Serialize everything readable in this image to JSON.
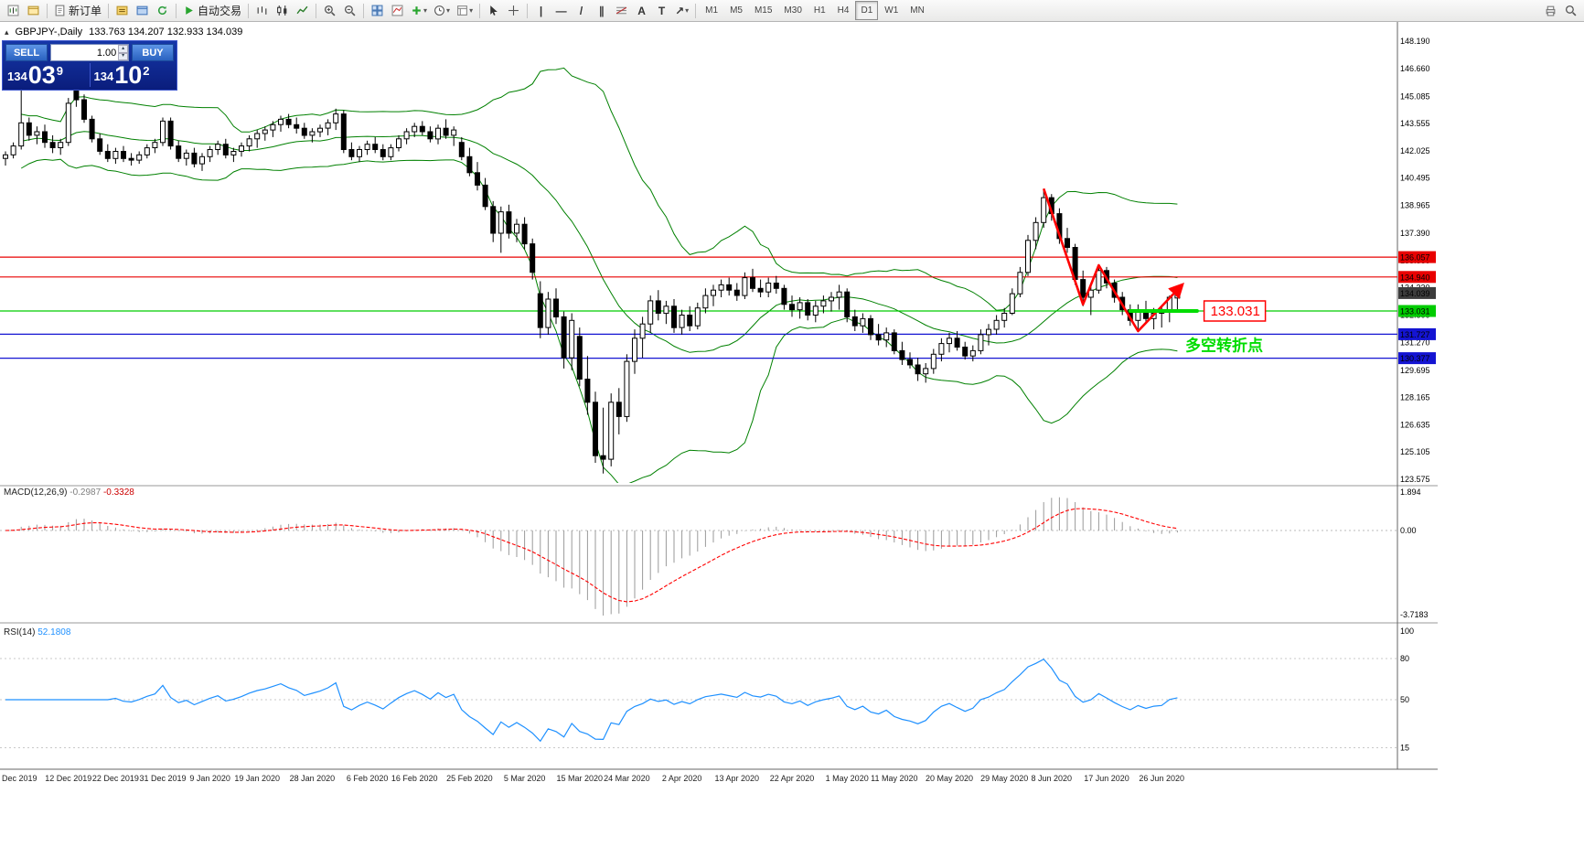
{
  "toolbar": {
    "items": [
      {
        "name": "new-chart",
        "icon": "new-chart"
      },
      {
        "name": "chart-profiles",
        "icon": "profiles"
      },
      {
        "sep": true
      },
      {
        "name": "new-order",
        "icon": "doc",
        "label": "新订单"
      },
      {
        "sep": true
      },
      {
        "name": "market-watch",
        "icon": "quotes"
      },
      {
        "name": "data-window",
        "icon": "data-window"
      },
      {
        "name": "navigator",
        "icon": "refresh"
      },
      {
        "sep": true
      },
      {
        "name": "auto-trading",
        "icon": "play",
        "label": "自动交易"
      },
      {
        "sep": true
      },
      {
        "name": "bar-chart-mode",
        "icon": "bars"
      },
      {
        "name": "candle-chart-mode",
        "icon": "candles"
      },
      {
        "name": "line-chart-mode",
        "icon": "line-chart"
      },
      {
        "sep": true
      },
      {
        "name": "zoom-in",
        "icon": "zoom-in"
      },
      {
        "name": "zoom-out",
        "icon": "zoom-out"
      },
      {
        "sep": true
      },
      {
        "name": "tile-windows",
        "icon": "tile"
      },
      {
        "name": "indicator-list",
        "icon": "ind-list"
      },
      {
        "name": "add-indicator",
        "icon": "plus",
        "dropdown": true
      },
      {
        "name": "period-presets",
        "icon": "clock",
        "dropdown": true
      },
      {
        "name": "templates",
        "icon": "template",
        "dropdown": true
      },
      {
        "sep": true
      },
      {
        "name": "cursor-tool",
        "icon": "cursor"
      },
      {
        "name": "crosshair-tool",
        "icon": "crosshair"
      },
      {
        "sep": true
      },
      {
        "name": "vertical-line-tool",
        "glyph": "|"
      },
      {
        "name": "horizontal-line-tool",
        "glyph": "—"
      },
      {
        "name": "trendline-tool",
        "glyph": "/"
      },
      {
        "name": "channel-tool",
        "glyph": "∥"
      },
      {
        "name": "fibonacci-tool",
        "icon": "fibo"
      },
      {
        "name": "text-tool",
        "glyph": "A"
      },
      {
        "name": "label-tool",
        "glyph": "T"
      },
      {
        "name": "arrow-tools",
        "glyph": "↗",
        "dropdown": true
      },
      {
        "sep": true
      }
    ],
    "timeframes": [
      "M1",
      "M5",
      "M15",
      "M30",
      "H1",
      "H4",
      "D1",
      "W1",
      "MN"
    ],
    "active_timeframe": "D1",
    "right_items": [
      {
        "name": "print",
        "icon": "printer"
      },
      {
        "name": "search",
        "icon": "search"
      }
    ]
  },
  "chart": {
    "symbol_period": "GBPJPY-,Daily",
    "ohlc_text": "133.763 134.207 132.933 134.039",
    "collapse_icon": "▴"
  },
  "trade_panel": {
    "sell_label": "SELL",
    "buy_label": "BUY",
    "volume": "1.00",
    "sell_big": "134",
    "sell_pips": "03",
    "sell_frac": "9",
    "buy_big": "134",
    "buy_pips": "10",
    "buy_frac": "2"
  },
  "chart_data": {
    "type": "candlestick",
    "symbol": "GBPJPY-",
    "timeframe": "Daily",
    "price_range": {
      "min": 123.575,
      "max": 148.19
    },
    "price_ticks": [
      148.19,
      146.66,
      145.085,
      143.555,
      142.025,
      140.495,
      138.965,
      137.39,
      135.86,
      134.33,
      132.8,
      131.27,
      129.695,
      128.165,
      126.635,
      125.105,
      123.575
    ],
    "current_price": 134.039,
    "hlines": [
      {
        "price": 136.057,
        "color": "#e80000"
      },
      {
        "price": 134.94,
        "color": "#e80000"
      },
      {
        "price": 133.031,
        "color": "#00cc00"
      },
      {
        "price": 131.727,
        "color": "#1414d2"
      },
      {
        "price": 130.377,
        "color": "#1414d2"
      }
    ],
    "candles": [
      [
        141.6,
        142.0,
        141.2,
        141.8
      ],
      [
        141.8,
        142.5,
        141.6,
        142.3
      ],
      [
        142.3,
        146.4,
        142.1,
        143.6
      ],
      [
        143.6,
        143.9,
        142.6,
        142.9
      ],
      [
        142.9,
        143.4,
        142.4,
        143.1
      ],
      [
        143.1,
        143.5,
        142.2,
        142.5
      ],
      [
        142.5,
        142.9,
        141.9,
        142.2
      ],
      [
        142.2,
        142.7,
        141.8,
        142.5
      ],
      [
        142.5,
        145.0,
        142.3,
        144.7
      ],
      [
        147.2,
        147.9,
        144.5,
        144.9
      ],
      [
        144.9,
        145.2,
        143.6,
        143.8
      ],
      [
        143.8,
        144.0,
        142.5,
        142.7
      ],
      [
        142.7,
        143.0,
        141.8,
        142.0
      ],
      [
        142.0,
        142.4,
        141.4,
        141.6
      ],
      [
        141.6,
        142.2,
        141.3,
        142.0
      ],
      [
        142.0,
        142.3,
        141.4,
        141.6
      ],
      [
        141.6,
        141.9,
        141.2,
        141.5
      ],
      [
        141.5,
        142.0,
        141.3,
        141.8
      ],
      [
        141.8,
        142.4,
        141.6,
        142.2
      ],
      [
        142.2,
        142.7,
        141.9,
        142.5
      ],
      [
        142.5,
        143.9,
        142.3,
        143.7
      ],
      [
        143.7,
        143.9,
        142.1,
        142.3
      ],
      [
        142.3,
        142.6,
        141.4,
        141.6
      ],
      [
        141.6,
        142.1,
        141.2,
        141.9
      ],
      [
        141.9,
        142.2,
        141.1,
        141.3
      ],
      [
        141.3,
        141.9,
        140.9,
        141.7
      ],
      [
        141.7,
        142.3,
        141.4,
        142.1
      ],
      [
        142.1,
        142.6,
        141.8,
        142.4
      ],
      [
        142.4,
        142.7,
        141.6,
        141.8
      ],
      [
        141.8,
        142.2,
        141.4,
        142.0
      ],
      [
        142.0,
        142.5,
        141.7,
        142.3
      ],
      [
        142.3,
        142.9,
        142.0,
        142.7
      ],
      [
        142.7,
        143.2,
        142.2,
        143.0
      ],
      [
        143.0,
        143.4,
        142.6,
        143.2
      ],
      [
        143.2,
        143.7,
        142.8,
        143.5
      ],
      [
        143.5,
        144.0,
        143.1,
        143.8
      ],
      [
        143.8,
        144.1,
        143.3,
        143.5
      ],
      [
        143.5,
        143.9,
        143.0,
        143.3
      ],
      [
        143.3,
        143.6,
        142.7,
        142.9
      ],
      [
        142.9,
        143.3,
        142.5,
        143.1
      ],
      [
        143.1,
        143.5,
        142.8,
        143.3
      ],
      [
        143.3,
        143.8,
        142.9,
        143.6
      ],
      [
        143.6,
        144.4,
        143.2,
        144.1
      ],
      [
        144.1,
        144.3,
        141.9,
        142.1
      ],
      [
        142.1,
        142.5,
        141.5,
        141.7
      ],
      [
        141.7,
        142.3,
        141.4,
        142.1
      ],
      [
        142.1,
        142.6,
        141.8,
        142.4
      ],
      [
        142.4,
        142.8,
        141.9,
        142.1
      ],
      [
        142.1,
        142.4,
        141.5,
        141.7
      ],
      [
        141.7,
        142.4,
        141.5,
        142.2
      ],
      [
        142.2,
        142.9,
        142.0,
        142.7
      ],
      [
        142.7,
        143.3,
        142.4,
        143.1
      ],
      [
        143.1,
        143.6,
        142.8,
        143.4
      ],
      [
        143.4,
        143.7,
        142.9,
        143.1
      ],
      [
        143.1,
        143.4,
        142.5,
        142.7
      ],
      [
        142.7,
        143.5,
        142.4,
        143.3
      ],
      [
        143.3,
        143.8,
        142.7,
        142.9
      ],
      [
        142.9,
        143.4,
        142.3,
        143.2
      ],
      [
        142.5,
        142.8,
        141.5,
        141.7
      ],
      [
        141.7,
        142.2,
        140.6,
        140.8
      ],
      [
        140.8,
        141.4,
        139.8,
        140.1
      ],
      [
        140.1,
        140.5,
        138.7,
        138.9
      ],
      [
        138.9,
        139.2,
        136.9,
        137.4
      ],
      [
        137.4,
        138.9,
        136.3,
        138.6
      ],
      [
        138.6,
        139.0,
        137.1,
        137.4
      ],
      [
        137.4,
        138.2,
        136.9,
        137.9
      ],
      [
        137.9,
        138.3,
        136.5,
        136.8
      ],
      [
        136.8,
        137.1,
        134.8,
        135.2
      ],
      [
        134.0,
        134.7,
        131.5,
        132.1
      ],
      [
        132.1,
        134.1,
        131.7,
        133.7
      ],
      [
        133.7,
        134.3,
        132.3,
        132.7
      ],
      [
        132.7,
        133.0,
        129.8,
        130.4
      ],
      [
        130.4,
        132.9,
        129.7,
        132.5
      ],
      [
        131.6,
        132.1,
        128.8,
        129.2
      ],
      [
        129.2,
        130.5,
        127.2,
        127.9
      ],
      [
        127.9,
        128.5,
        124.5,
        124.9
      ],
      [
        124.9,
        127.6,
        123.9,
        124.7
      ],
      [
        124.7,
        128.4,
        124.3,
        127.9
      ],
      [
        127.9,
        128.7,
        126.1,
        127.1
      ],
      [
        127.1,
        130.6,
        126.8,
        130.2
      ],
      [
        130.2,
        132.0,
        129.5,
        131.5
      ],
      [
        131.5,
        132.7,
        130.4,
        132.3
      ],
      [
        132.3,
        133.9,
        131.8,
        133.6
      ],
      [
        133.6,
        134.2,
        132.5,
        132.9
      ],
      [
        132.9,
        133.6,
        132.3,
        133.3
      ],
      [
        133.3,
        133.7,
        131.8,
        132.1
      ],
      [
        132.1,
        133.1,
        131.7,
        132.8
      ],
      [
        132.8,
        133.3,
        131.9,
        132.2
      ],
      [
        132.2,
        133.5,
        132.0,
        133.2
      ],
      [
        133.2,
        134.3,
        132.9,
        133.9
      ],
      [
        133.9,
        134.5,
        133.3,
        134.2
      ],
      [
        134.2,
        134.8,
        133.8,
        134.5
      ],
      [
        134.5,
        134.9,
        133.9,
        134.2
      ],
      [
        134.2,
        134.6,
        133.6,
        133.9
      ],
      [
        133.9,
        135.2,
        133.7,
        134.9
      ],
      [
        134.9,
        135.4,
        134.1,
        134.3
      ],
      [
        134.3,
        134.8,
        133.8,
        134.1
      ],
      [
        134.1,
        134.9,
        133.8,
        134.6
      ],
      [
        134.6,
        135.0,
        134.0,
        134.3
      ],
      [
        134.3,
        134.5,
        133.1,
        133.4
      ],
      [
        133.4,
        133.9,
        132.7,
        133.1
      ],
      [
        133.1,
        133.8,
        132.6,
        133.5
      ],
      [
        133.5,
        133.7,
        132.5,
        132.8
      ],
      [
        132.8,
        133.6,
        132.4,
        133.3
      ],
      [
        133.3,
        133.9,
        132.9,
        133.6
      ],
      [
        133.6,
        134.1,
        133.0,
        133.8
      ],
      [
        133.8,
        134.5,
        133.1,
        134.1
      ],
      [
        134.1,
        134.3,
        132.4,
        132.7
      ],
      [
        132.7,
        133.1,
        131.9,
        132.2
      ],
      [
        132.2,
        132.9,
        131.8,
        132.6
      ],
      [
        132.6,
        132.8,
        131.4,
        131.7
      ],
      [
        131.7,
        132.3,
        131.1,
        131.4
      ],
      [
        131.4,
        132.1,
        131.0,
        131.8
      ],
      [
        131.8,
        132.0,
        130.6,
        130.8
      ],
      [
        130.8,
        131.3,
        130.0,
        130.3
      ],
      [
        130.3,
        130.7,
        129.8,
        130.0
      ],
      [
        130.0,
        130.4,
        129.1,
        129.5
      ],
      [
        129.5,
        130.1,
        129.0,
        129.8
      ],
      [
        129.8,
        130.9,
        129.5,
        130.6
      ],
      [
        130.6,
        131.5,
        130.2,
        131.2
      ],
      [
        131.2,
        131.8,
        130.7,
        131.5
      ],
      [
        131.5,
        131.9,
        130.8,
        131.0
      ],
      [
        131.0,
        131.3,
        130.3,
        130.5
      ],
      [
        130.5,
        131.1,
        130.2,
        130.8
      ],
      [
        130.8,
        132.0,
        130.6,
        131.7
      ],
      [
        131.7,
        132.3,
        131.1,
        132.0
      ],
      [
        132.0,
        132.8,
        131.7,
        132.5
      ],
      [
        132.5,
        133.2,
        132.1,
        132.9
      ],
      [
        132.9,
        134.3,
        132.8,
        134.0
      ],
      [
        134.0,
        135.5,
        133.8,
        135.2
      ],
      [
        135.2,
        137.3,
        135.0,
        137.0
      ],
      [
        137.0,
        138.3,
        136.5,
        138.0
      ],
      [
        138.0,
        139.9,
        137.7,
        139.4
      ],
      [
        139.4,
        139.6,
        138.1,
        138.5
      ],
      [
        138.5,
        138.8,
        136.8,
        137.1
      ],
      [
        137.1,
        137.7,
        136.3,
        136.6
      ],
      [
        136.6,
        136.8,
        134.5,
        134.8
      ],
      [
        134.8,
        135.3,
        133.3,
        133.8
      ],
      [
        133.8,
        134.5,
        132.8,
        134.2
      ],
      [
        134.2,
        135.6,
        134.0,
        135.3
      ],
      [
        135.3,
        135.5,
        134.3,
        134.6
      ],
      [
        134.6,
        134.8,
        133.5,
        133.8
      ],
      [
        133.8,
        134.1,
        132.8,
        133.1
      ],
      [
        133.1,
        133.4,
        132.2,
        132.5
      ],
      [
        132.5,
        133.4,
        131.9,
        133.1
      ],
      [
        133.1,
        133.6,
        132.3,
        132.6
      ],
      [
        132.6,
        133.2,
        132.0,
        132.9
      ],
      [
        132.9,
        133.3,
        132.1,
        133.0
      ],
      [
        133.0,
        133.9,
        132.4,
        133.8
      ],
      [
        133.763,
        134.207,
        132.933,
        134.039
      ]
    ],
    "date_ticks": [
      {
        "label": "Dec 2019",
        "i": 0
      },
      {
        "label": "12 Dec 2019",
        "i": 8
      },
      {
        "label": "22 Dec 2019",
        "i": 14
      },
      {
        "label": "31 Dec 2019",
        "i": 20
      },
      {
        "label": "9 Jan 2020",
        "i": 26
      },
      {
        "label": "19 Jan 2020",
        "i": 32
      },
      {
        "label": "28 Jan 2020",
        "i": 39
      },
      {
        "label": "6 Feb 2020",
        "i": 46
      },
      {
        "label": "16 Feb 2020",
        "i": 52
      },
      {
        "label": "25 Feb 2020",
        "i": 59
      },
      {
        "label": "5 Mar 2020",
        "i": 66
      },
      {
        "label": "15 Mar 2020",
        "i": 73
      },
      {
        "label": "24 Mar 2020",
        "i": 79
      },
      {
        "label": "2 Apr 2020",
        "i": 86
      },
      {
        "label": "13 Apr 2020",
        "i": 93
      },
      {
        "label": "22 Apr 2020",
        "i": 100
      },
      {
        "label": "1 May 2020",
        "i": 107
      },
      {
        "label": "11 May 2020",
        "i": 113
      },
      {
        "label": "20 May 2020",
        "i": 120
      },
      {
        "label": "29 May 2020",
        "i": 127
      },
      {
        "label": "8 Jun 2020",
        "i": 133
      },
      {
        "label": "17 Jun 2020",
        "i": 140
      },
      {
        "label": "26 Jun 2020",
        "i": 147
      }
    ],
    "annotations": {
      "trendline": {
        "points": [
          {
            "i": 132,
            "p": 139.9
          },
          {
            "i": 137,
            "p": 133.4
          },
          {
            "i": 139,
            "p": 135.6
          },
          {
            "i": 144,
            "p": 131.9
          },
          {
            "i": 149.6,
            "p": 134.5
          }
        ]
      },
      "support_line": {
        "i1": 143,
        "i2": 151.5,
        "price": 133.031
      },
      "price_label": {
        "text": "133.031",
        "i": 152.4,
        "p": 133.031
      },
      "turning_point": {
        "text": "多空转折点",
        "i": 150,
        "p": 130.8
      }
    },
    "macd": {
      "label": "MACD(12,26,9)",
      "main_value": "-0.2987",
      "signal_value": "-0.3328",
      "axis_max": "1.894",
      "axis_zero": "0.00",
      "axis_min": "-3.7183"
    },
    "rsi": {
      "label": "RSI(14)",
      "value": "52.1808",
      "axis": [
        100,
        80,
        50,
        15
      ],
      "levels": [
        80,
        50,
        15
      ]
    },
    "colors": {
      "up": "#ffffff",
      "down": "#000000",
      "bands": "#008000",
      "macd_hist": "#9a9a9a",
      "macd_signal": "#ff0000",
      "rsi": "#1e90ff",
      "current_badge": "#3c3c3c",
      "annotation": "#ff0000",
      "support": "#00dd00"
    }
  }
}
